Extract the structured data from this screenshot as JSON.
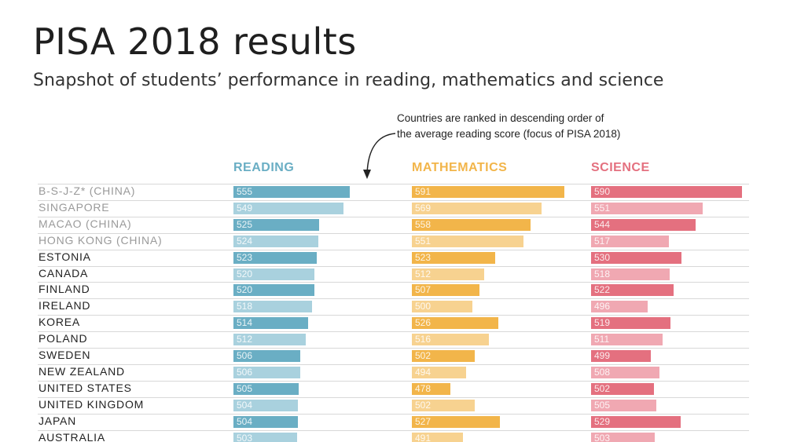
{
  "header": {
    "title": "PISA 2018 results",
    "subtitle": "Snapshot of students’ performance in reading, mathematics and science",
    "note_line1": "Countries are ranked in descending order of",
    "note_line2": "the average reading score (focus of PISA 2018)"
  },
  "colors": {
    "reading": "#6aaec4",
    "reading_light": "#a9d1de",
    "mathematics": "#f2b54a",
    "mathematics_light": "#f7d290",
    "science": "#e4707f",
    "science_light": "#f0a8b2"
  },
  "chart_data": {
    "type": "bar",
    "title": "PISA 2018 results",
    "subtitle": "Snapshot of students’ performance in reading, mathematics and science",
    "orientation": "horizontal",
    "categories": [
      "B-S-J-Z* (CHINA)",
      "SINGAPORE",
      "MACAO (CHINA)",
      "HONG KONG (CHINA)",
      "ESTONIA",
      "CANADA",
      "FINLAND",
      "IRELAND",
      "KOREA",
      "POLAND",
      "SWEDEN",
      "NEW ZEALAND",
      "UNITED STATES",
      "UNITED KINGDOM",
      "JAPAN",
      "AUSTRALIA"
    ],
    "highlighted_categories": [
      "B-S-J-Z* (CHINA)",
      "SINGAPORE",
      "MACAO (CHINA)",
      "HONG KONG (CHINA)"
    ],
    "series": [
      {
        "name": "READING",
        "values": [
          555,
          549,
          525,
          524,
          523,
          520,
          520,
          518,
          514,
          512,
          506,
          506,
          505,
          504,
          504,
          503
        ]
      },
      {
        "name": "MATHEMATICS",
        "values": [
          591,
          569,
          558,
          551,
          523,
          512,
          507,
          500,
          526,
          516,
          502,
          494,
          478,
          502,
          527,
          491
        ]
      },
      {
        "name": "SCIENCE",
        "values": [
          590,
          551,
          544,
          517,
          530,
          518,
          522,
          496,
          519,
          511,
          499,
          508,
          502,
          505,
          529,
          503
        ]
      }
    ],
    "legend": "column-headers",
    "grid": false
  }
}
